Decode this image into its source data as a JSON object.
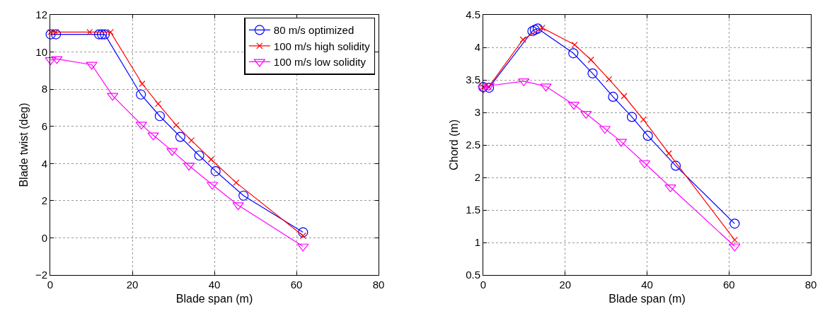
{
  "chart_data": [
    {
      "type": "line",
      "xlabel": "Blade span (m)",
      "ylabel": "Blade twist (deg)",
      "xlim": [
        0,
        80
      ],
      "xticks": [
        0,
        20,
        40,
        60,
        80
      ],
      "ylim": [
        -2,
        12
      ],
      "yticks": [
        -2,
        0,
        2,
        4,
        6,
        8,
        10,
        12
      ],
      "grid": true,
      "legend": "top right",
      "line_style": "solid",
      "series": [
        {
          "name": "80 m/s optimized",
          "color": "#0000ff",
          "marker": "circle",
          "x": [
            0.1,
            1.4,
            11.9,
            12.6,
            13.3,
            22.1,
            26.7,
            31.7,
            36.3,
            40.3,
            47.1,
            61.6
          ],
          "values": [
            10.95,
            10.95,
            10.95,
            10.95,
            10.95,
            7.71,
            6.55,
            5.43,
            4.43,
            3.59,
            2.27,
            0.3
          ]
        },
        {
          "name": "100 m/s high solidity",
          "color": "#ff0000",
          "marker": "cross",
          "x": [
            0.1,
            1.3,
            9.6,
            14.7,
            22.4,
            26.3,
            30.7,
            34.4,
            39.2,
            45.3,
            61.6
          ],
          "values": [
            11.07,
            11.07,
            11.07,
            11.07,
            8.29,
            7.21,
            6.06,
            5.24,
            4.22,
            2.97,
            0.11
          ]
        },
        {
          "name": "100 m/s low solidity",
          "color": "#ff00ff",
          "marker": "triangle",
          "x": [
            0.1,
            1.6,
            10.1,
            15.2,
            22.2,
            25.1,
            29.7,
            33.8,
            39.5,
            45.8,
            61.6
          ],
          "values": [
            9.57,
            9.63,
            9.32,
            7.65,
            6.1,
            5.52,
            4.68,
            3.89,
            2.86,
            1.76,
            -0.46
          ]
        }
      ]
    },
    {
      "type": "line",
      "xlabel": "Blade span (m)",
      "ylabel": "Chord (m)",
      "xlim": [
        0,
        80
      ],
      "xticks": [
        0,
        20,
        40,
        60,
        80
      ],
      "ylim": [
        0.5,
        4.5
      ],
      "yticks": [
        0.5,
        1,
        1.5,
        2,
        2.5,
        3,
        3.5,
        4,
        4.5
      ],
      "grid": true,
      "line_style": "solid",
      "series": [
        {
          "color": "#0000ff",
          "marker": "circle",
          "x": [
            0,
            1.4,
            12,
            12.6,
            13.3,
            22,
            26.7,
            31.7,
            36.3,
            40.2,
            47,
            61.4
          ],
          "values": [
            3.39,
            3.38,
            4.25,
            4.27,
            4.29,
            3.91,
            3.6,
            3.24,
            2.93,
            2.64,
            2.18,
            1.29
          ]
        },
        {
          "color": "#ff0000",
          "marker": "cross",
          "x": [
            0,
            1.3,
            9.7,
            14.4,
            22.3,
            26.3,
            30.7,
            34.4,
            39.1,
            45.3,
            61.4
          ],
          "values": [
            3.39,
            3.39,
            4.12,
            4.3,
            4.04,
            3.81,
            3.51,
            3.25,
            2.89,
            2.37,
            1.04
          ]
        },
        {
          "color": "#ff00ff",
          "marker": "triangle",
          "x": [
            0,
            1.4,
            9.9,
            15.3,
            22.1,
            25.1,
            29.7,
            33.7,
            39.4,
            45.7,
            61.4
          ],
          "values": [
            3.37,
            3.41,
            3.48,
            3.4,
            3.12,
            2.98,
            2.75,
            2.55,
            2.22,
            1.85,
            0.94
          ]
        }
      ]
    }
  ]
}
